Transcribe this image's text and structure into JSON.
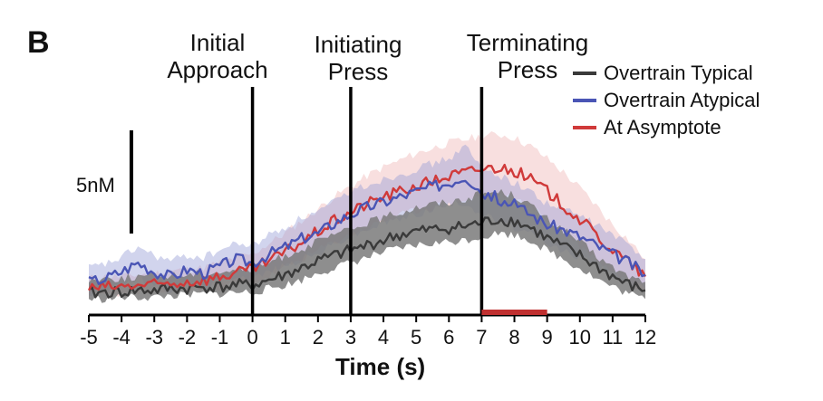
{
  "panel_label": "B",
  "legend": [
    {
      "label": "Overtrain Typical",
      "color": "#3a3a3a"
    },
    {
      "label": "Overtrain Atypical",
      "color": "#4a55b5"
    },
    {
      "label": "At Asymptote",
      "color": "#d03a3a"
    }
  ],
  "events": [
    {
      "line1": "Initial",
      "line2": "Approach",
      "x": 0
    },
    {
      "line1": "Initiating",
      "line2": "Press",
      "x": 3
    },
    {
      "line1": "Terminating",
      "line2": "Press",
      "x": 7
    }
  ],
  "scale_bar_label": "5nM",
  "chart_data": {
    "type": "line",
    "xlabel": "Time (s)",
    "ylabel": "",
    "xlim": [
      -5,
      12
    ],
    "x_ticks": [
      -5,
      -4,
      -3,
      -2,
      -1,
      0,
      1,
      2,
      3,
      4,
      5,
      6,
      7,
      8,
      9,
      10,
      11,
      12
    ],
    "x_tick_labels": [
      "-5",
      "-4",
      "-3",
      "-2",
      "-1",
      "0",
      "1",
      "2",
      "3",
      "4",
      "5",
      "6",
      "7",
      "8",
      "9",
      "10",
      "11",
      "12"
    ],
    "ylim": [
      0,
      12
    ],
    "scale_bar": {
      "label": "5nM",
      "value_nM": 5,
      "x": -3.7
    },
    "highlight_interval": {
      "start": 7,
      "end": 9,
      "color": "#c03030"
    },
    "x": [
      -5,
      -4.5,
      -4,
      -3.5,
      -3,
      -2.5,
      -2,
      -1.5,
      -1,
      -0.5,
      0,
      0.5,
      1,
      1.5,
      2,
      2.5,
      3,
      3.5,
      4,
      4.5,
      5,
      5.5,
      6,
      6.5,
      7,
      7.5,
      8,
      8.5,
      9,
      9.5,
      10,
      10.5,
      11,
      11.5,
      12
    ],
    "series": [
      {
        "name": "Overtrain Typical",
        "color": "#3a3a3a",
        "fill": "#7a7a7a",
        "fill_opacity": 0.85,
        "values": [
          0.8,
          0.9,
          0.9,
          1.0,
          1.0,
          1.1,
          1.1,
          1.2,
          1.2,
          1.3,
          1.3,
          1.6,
          1.9,
          2.3,
          2.7,
          3.0,
          3.3,
          3.6,
          3.9,
          4.2,
          4.4,
          4.5,
          4.6,
          4.7,
          4.9,
          5.1,
          5.0,
          4.6,
          4.0,
          3.5,
          3.0,
          2.4,
          1.8,
          1.3,
          1.0
        ],
        "upper": [
          1.6,
          1.7,
          1.7,
          1.8,
          1.8,
          1.9,
          1.9,
          2.0,
          2.1,
          2.2,
          2.2,
          2.6,
          3.0,
          3.4,
          3.8,
          4.2,
          4.5,
          4.9,
          5.2,
          5.5,
          5.8,
          6.0,
          6.1,
          6.3,
          6.6,
          6.7,
          6.5,
          5.9,
          5.1,
          4.5,
          3.8,
          3.0,
          2.3,
          1.8,
          1.5
        ],
        "lower": [
          0.5,
          0.5,
          0.6,
          0.6,
          0.6,
          0.7,
          0.7,
          0.8,
          0.8,
          0.9,
          0.9,
          1.1,
          1.3,
          1.6,
          2.0,
          2.3,
          2.6,
          2.9,
          3.2,
          3.4,
          3.6,
          3.7,
          3.8,
          3.9,
          4.1,
          4.3,
          4.2,
          3.9,
          3.3,
          2.8,
          2.3,
          1.7,
          1.2,
          0.8,
          0.5
        ]
      },
      {
        "name": "Overtrain Atypical",
        "color": "#4a55b5",
        "fill": "#9aa0d8",
        "fill_opacity": 0.45,
        "values": [
          1.5,
          1.7,
          2.1,
          2.6,
          2.1,
          1.8,
          2.2,
          2.0,
          2.4,
          2.8,
          2.6,
          3.1,
          3.5,
          4.0,
          4.3,
          4.9,
          5.4,
          5.8,
          6.1,
          6.4,
          6.7,
          7.0,
          7.2,
          7.6,
          6.7,
          6.3,
          5.9,
          5.4,
          4.8,
          4.5,
          4.1,
          3.6,
          3.1,
          2.6,
          1.9
        ],
        "upper": [
          2.3,
          2.5,
          2.9,
          3.5,
          3.0,
          2.7,
          3.0,
          2.9,
          3.3,
          3.7,
          3.6,
          4.2,
          4.6,
          5.2,
          5.5,
          6.1,
          6.7,
          7.1,
          7.4,
          7.7,
          8.0,
          8.3,
          8.6,
          9.3,
          8.0,
          7.7,
          7.2,
          6.7,
          6.0,
          5.7,
          5.3,
          4.8,
          4.2,
          3.6,
          2.8
        ],
        "lower": [
          0.8,
          1.0,
          1.3,
          1.7,
          1.3,
          1.0,
          1.4,
          1.2,
          1.5,
          1.9,
          1.7,
          2.1,
          2.4,
          2.8,
          3.1,
          3.7,
          4.1,
          4.5,
          4.9,
          5.1,
          5.4,
          5.7,
          5.9,
          6.1,
          5.4,
          5.0,
          4.6,
          4.2,
          3.6,
          3.3,
          2.9,
          2.4,
          1.9,
          1.5,
          1.0
        ]
      },
      {
        "name": "At Asymptote",
        "color": "#d03a3a",
        "fill": "#f0b8b8",
        "fill_opacity": 0.45,
        "values": [
          1.1,
          1.2,
          1.2,
          1.3,
          1.3,
          1.4,
          1.5,
          1.6,
          1.8,
          2.0,
          2.2,
          2.7,
          3.2,
          3.8,
          4.4,
          5.0,
          5.5,
          6.0,
          6.4,
          6.7,
          7.0,
          7.3,
          7.6,
          7.8,
          8.0,
          8.1,
          7.9,
          7.4,
          6.7,
          5.9,
          5.1,
          4.2,
          3.3,
          2.6,
          1.8
        ],
        "upper": [
          1.7,
          1.8,
          1.8,
          1.9,
          2.0,
          2.1,
          2.2,
          2.3,
          2.6,
          2.9,
          3.1,
          3.7,
          4.3,
          5.0,
          5.7,
          6.4,
          7.0,
          7.6,
          8.1,
          8.5,
          8.9,
          9.2,
          9.5,
          9.7,
          9.9,
          10.0,
          9.8,
          9.3,
          8.6,
          7.8,
          6.9,
          5.9,
          4.8,
          3.9,
          2.8
        ],
        "lower": [
          0.7,
          0.8,
          0.8,
          0.9,
          0.9,
          1.0,
          1.0,
          1.1,
          1.2,
          1.3,
          1.4,
          1.8,
          2.3,
          2.8,
          3.3,
          3.8,
          4.2,
          4.6,
          5.0,
          5.3,
          5.6,
          5.8,
          6.0,
          6.2,
          6.4,
          6.5,
          6.3,
          5.8,
          5.1,
          4.4,
          3.6,
          2.8,
          2.1,
          1.5,
          1.0
        ]
      }
    ]
  }
}
